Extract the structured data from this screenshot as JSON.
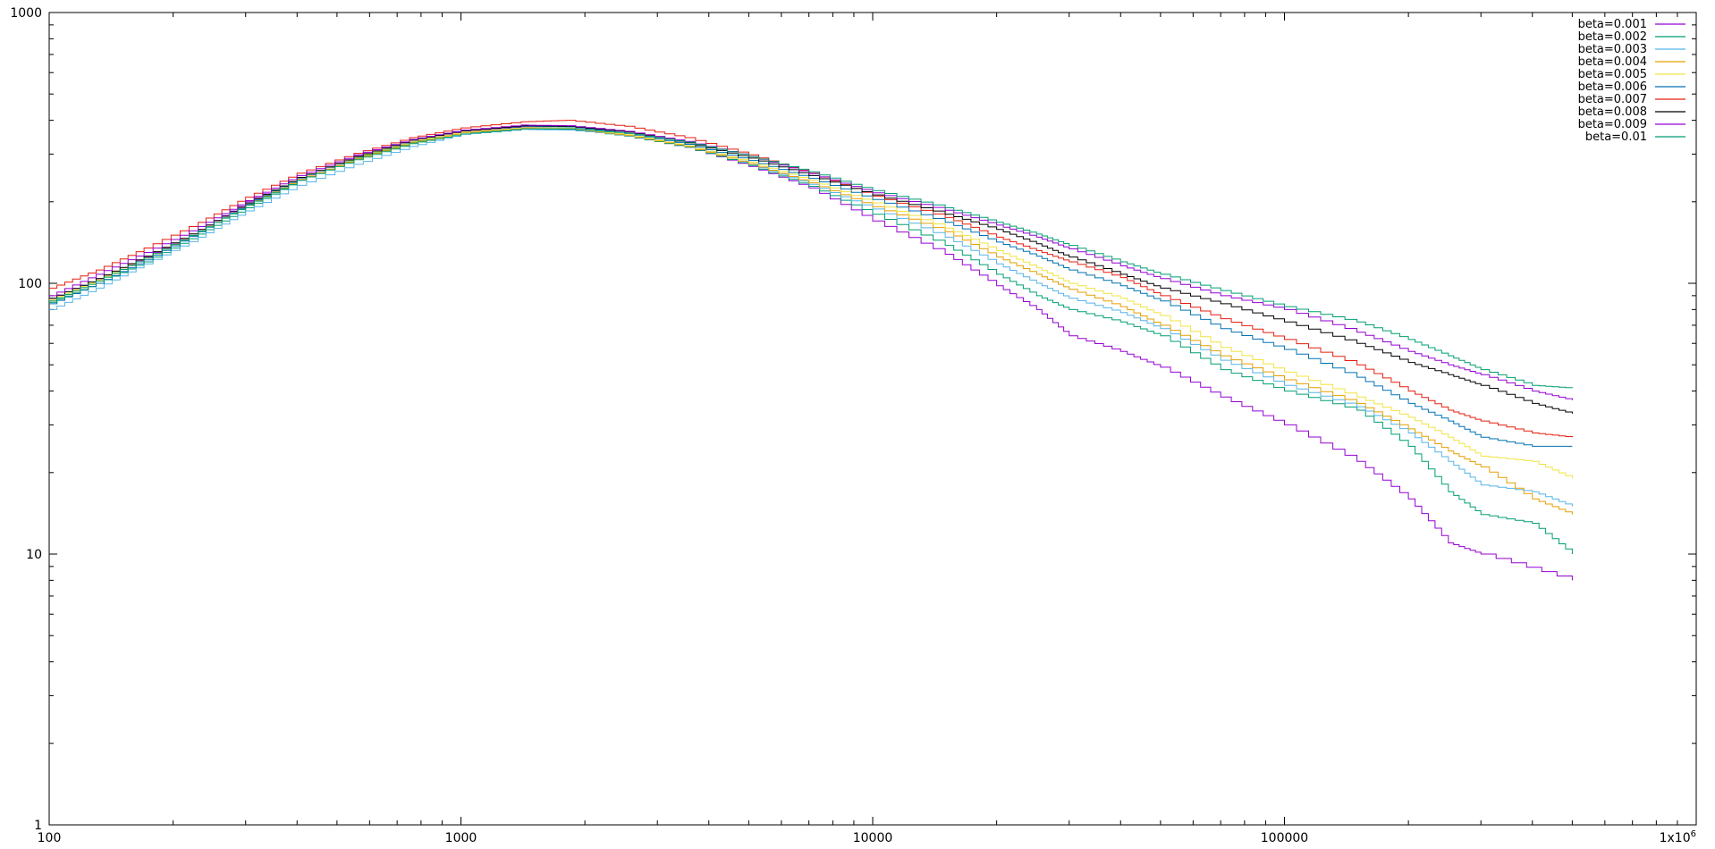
{
  "chart_data": {
    "type": "line",
    "title": "",
    "xlabel": "",
    "ylabel": "",
    "x_scale": "log",
    "y_scale": "log",
    "xlim": [
      100,
      1000000
    ],
    "ylim": [
      1,
      1000
    ],
    "grid": false,
    "legend_position": "top-right",
    "x_ticks": [
      {
        "value": 100,
        "label": "100"
      },
      {
        "value": 1000,
        "label": "1000"
      },
      {
        "value": 10000,
        "label": "10000"
      },
      {
        "value": 100000,
        "label": "100000"
      },
      {
        "value": 1000000,
        "label": "1x10",
        "sup": "6"
      }
    ],
    "y_ticks": [
      {
        "value": 1,
        "label": "1"
      },
      {
        "value": 10,
        "label": "10"
      },
      {
        "value": 100,
        "label": "100"
      },
      {
        "value": 1000,
        "label": "1000"
      }
    ],
    "series": [
      {
        "name": "beta=0.001",
        "color": "#9400d3",
        "points": [
          [
            100,
            88
          ],
          [
            130,
            104
          ],
          [
            170,
            125
          ],
          [
            230,
            158
          ],
          [
            300,
            200
          ],
          [
            400,
            245
          ],
          [
            550,
            295
          ],
          [
            750,
            338
          ],
          [
            1000,
            365
          ],
          [
            1400,
            378
          ],
          [
            1800,
            372
          ],
          [
            2500,
            350
          ],
          [
            3500,
            318
          ],
          [
            5000,
            270
          ],
          [
            7000,
            225
          ],
          [
            10000,
            170
          ],
          [
            15000,
            128
          ],
          [
            20000,
            98
          ],
          [
            25000,
            80
          ],
          [
            30000,
            64
          ],
          [
            40000,
            56
          ],
          [
            50000,
            49
          ],
          [
            70000,
            38
          ],
          [
            100000,
            30
          ],
          [
            150000,
            22
          ],
          [
            200000,
            16
          ],
          [
            250000,
            11
          ],
          [
            300000,
            10
          ],
          [
            500000,
            8
          ]
        ]
      },
      {
        "name": "beta=0.002",
        "color": "#009e73",
        "points": [
          [
            100,
            85
          ],
          [
            130,
            100
          ],
          [
            170,
            120
          ],
          [
            230,
            152
          ],
          [
            300,
            190
          ],
          [
            400,
            240
          ],
          [
            550,
            290
          ],
          [
            750,
            332
          ],
          [
            1000,
            360
          ],
          [
            1400,
            372
          ],
          [
            1800,
            370
          ],
          [
            2500,
            350
          ],
          [
            3500,
            318
          ],
          [
            5000,
            272
          ],
          [
            7000,
            228
          ],
          [
            10000,
            180
          ],
          [
            15000,
            138
          ],
          [
            20000,
            108
          ],
          [
            25000,
            90
          ],
          [
            30000,
            80
          ],
          [
            40000,
            72
          ],
          [
            50000,
            64
          ],
          [
            70000,
            48
          ],
          [
            100000,
            40
          ],
          [
            150000,
            34
          ],
          [
            200000,
            25
          ],
          [
            250000,
            17
          ],
          [
            300000,
            14
          ],
          [
            400000,
            13
          ],
          [
            500000,
            10
          ]
        ]
      },
      {
        "name": "beta=0.003",
        "color": "#56b4e9",
        "points": [
          [
            100,
            80
          ],
          [
            130,
            96
          ],
          [
            170,
            118
          ],
          [
            230,
            148
          ],
          [
            300,
            185
          ],
          [
            400,
            230
          ],
          [
            550,
            275
          ],
          [
            750,
            320
          ],
          [
            1000,
            355
          ],
          [
            1400,
            370
          ],
          [
            1800,
            368
          ],
          [
            2500,
            352
          ],
          [
            3500,
            322
          ],
          [
            5000,
            275
          ],
          [
            7000,
            232
          ],
          [
            10000,
            188
          ],
          [
            15000,
            148
          ],
          [
            20000,
            118
          ],
          [
            25000,
            100
          ],
          [
            30000,
            88
          ],
          [
            40000,
            78
          ],
          [
            50000,
            68
          ],
          [
            70000,
            52
          ],
          [
            100000,
            42
          ],
          [
            150000,
            35
          ],
          [
            200000,
            28
          ],
          [
            250000,
            22
          ],
          [
            300000,
            18
          ],
          [
            400000,
            17
          ],
          [
            500000,
            15
          ]
        ]
      },
      {
        "name": "beta=0.004",
        "color": "#e69f00",
        "points": [
          [
            100,
            86
          ],
          [
            130,
            102
          ],
          [
            170,
            124
          ],
          [
            230,
            156
          ],
          [
            300,
            195
          ],
          [
            400,
            242
          ],
          [
            550,
            288
          ],
          [
            750,
            330
          ],
          [
            1000,
            360
          ],
          [
            1400,
            374
          ],
          [
            1800,
            372
          ],
          [
            2500,
            352
          ],
          [
            3500,
            320
          ],
          [
            5000,
            276
          ],
          [
            7000,
            235
          ],
          [
            10000,
            192
          ],
          [
            15000,
            155
          ],
          [
            20000,
            125
          ],
          [
            25000,
            108
          ],
          [
            30000,
            95
          ],
          [
            40000,
            82
          ],
          [
            50000,
            70
          ],
          [
            70000,
            54
          ],
          [
            100000,
            44
          ],
          [
            150000,
            36
          ],
          [
            200000,
            29
          ],
          [
            250000,
            24
          ],
          [
            300000,
            21
          ],
          [
            400000,
            16
          ],
          [
            500000,
            14
          ]
        ]
      },
      {
        "name": "beta=0.005",
        "color": "#f0e442",
        "points": [
          [
            100,
            87
          ],
          [
            130,
            103
          ],
          [
            170,
            126
          ],
          [
            230,
            158
          ],
          [
            300,
            198
          ],
          [
            400,
            246
          ],
          [
            550,
            292
          ],
          [
            750,
            334
          ],
          [
            1000,
            362
          ],
          [
            1400,
            376
          ],
          [
            1800,
            374
          ],
          [
            2500,
            354
          ],
          [
            3500,
            322
          ],
          [
            5000,
            280
          ],
          [
            7000,
            240
          ],
          [
            10000,
            198
          ],
          [
            15000,
            160
          ],
          [
            20000,
            132
          ],
          [
            25000,
            114
          ],
          [
            30000,
            100
          ],
          [
            40000,
            88
          ],
          [
            50000,
            76
          ],
          [
            70000,
            58
          ],
          [
            100000,
            47
          ],
          [
            150000,
            38
          ],
          [
            200000,
            32
          ],
          [
            250000,
            27
          ],
          [
            300000,
            23
          ],
          [
            400000,
            22
          ],
          [
            500000,
            19
          ]
        ]
      },
      {
        "name": "beta=0.006",
        "color": "#0072b2",
        "points": [
          [
            100,
            84
          ],
          [
            130,
            100
          ],
          [
            170,
            122
          ],
          [
            230,
            155
          ],
          [
            300,
            196
          ],
          [
            400,
            245
          ],
          [
            550,
            294
          ],
          [
            750,
            338
          ],
          [
            1000,
            366
          ],
          [
            1400,
            380
          ],
          [
            1800,
            378
          ],
          [
            2500,
            358
          ],
          [
            3500,
            326
          ],
          [
            5000,
            284
          ],
          [
            7000,
            244
          ],
          [
            10000,
            204
          ],
          [
            15000,
            168
          ],
          [
            20000,
            142
          ],
          [
            25000,
            126
          ],
          [
            30000,
            112
          ],
          [
            40000,
            98
          ],
          [
            50000,
            86
          ],
          [
            70000,
            68
          ],
          [
            100000,
            57
          ],
          [
            150000,
            45
          ],
          [
            200000,
            36
          ],
          [
            250000,
            31
          ],
          [
            300000,
            27
          ],
          [
            400000,
            25
          ],
          [
            500000,
            25
          ]
        ]
      },
      {
        "name": "beta=0.007",
        "color": "#e51e10",
        "points": [
          [
            100,
            96
          ],
          [
            130,
            112
          ],
          [
            170,
            135
          ],
          [
            230,
            168
          ],
          [
            300,
            208
          ],
          [
            400,
            255
          ],
          [
            550,
            302
          ],
          [
            750,
            345
          ],
          [
            1000,
            375
          ],
          [
            1400,
            395
          ],
          [
            1800,
            400
          ],
          [
            2500,
            380
          ],
          [
            3500,
            345
          ],
          [
            5000,
            298
          ],
          [
            7000,
            255
          ],
          [
            10000,
            210
          ],
          [
            15000,
            175
          ],
          [
            20000,
            148
          ],
          [
            25000,
            132
          ],
          [
            30000,
            120
          ],
          [
            40000,
            105
          ],
          [
            50000,
            90
          ],
          [
            70000,
            74
          ],
          [
            100000,
            62
          ],
          [
            150000,
            50
          ],
          [
            200000,
            40
          ],
          [
            250000,
            34
          ],
          [
            300000,
            31
          ],
          [
            400000,
            28
          ],
          [
            500000,
            27
          ]
        ]
      },
      {
        "name": "beta=0.008",
        "color": "#000000",
        "points": [
          [
            100,
            88
          ],
          [
            130,
            104
          ],
          [
            170,
            126
          ],
          [
            230,
            158
          ],
          [
            300,
            198
          ],
          [
            400,
            246
          ],
          [
            550,
            294
          ],
          [
            750,
            338
          ],
          [
            1000,
            366
          ],
          [
            1400,
            382
          ],
          [
            1800,
            380
          ],
          [
            2500,
            362
          ],
          [
            3500,
            330
          ],
          [
            5000,
            290
          ],
          [
            7000,
            250
          ],
          [
            10000,
            212
          ],
          [
            15000,
            180
          ],
          [
            20000,
            158
          ],
          [
            25000,
            140
          ],
          [
            30000,
            125
          ],
          [
            40000,
            108
          ],
          [
            50000,
            96
          ],
          [
            70000,
            84
          ],
          [
            100000,
            72
          ],
          [
            150000,
            60
          ],
          [
            200000,
            51
          ],
          [
            250000,
            46
          ],
          [
            300000,
            42
          ],
          [
            400000,
            36
          ],
          [
            500000,
            33
          ]
        ]
      },
      {
        "name": "beta=0.009",
        "color": "#9400d3",
        "points": [
          [
            100,
            90
          ],
          [
            130,
            108
          ],
          [
            170,
            130
          ],
          [
            230,
            162
          ],
          [
            300,
            202
          ],
          [
            400,
            250
          ],
          [
            550,
            298
          ],
          [
            750,
            340
          ],
          [
            1000,
            368
          ],
          [
            1400,
            384
          ],
          [
            1800,
            382
          ],
          [
            2500,
            364
          ],
          [
            3500,
            334
          ],
          [
            5000,
            294
          ],
          [
            7000,
            254
          ],
          [
            10000,
            216
          ],
          [
            15000,
            186
          ],
          [
            20000,
            164
          ],
          [
            25000,
            148
          ],
          [
            30000,
            134
          ],
          [
            40000,
            116
          ],
          [
            50000,
            104
          ],
          [
            70000,
            90
          ],
          [
            100000,
            80
          ],
          [
            150000,
            66
          ],
          [
            200000,
            56
          ],
          [
            250000,
            50
          ],
          [
            300000,
            46
          ],
          [
            400000,
            40
          ],
          [
            500000,
            37
          ]
        ]
      },
      {
        "name": "beta=0.01",
        "color": "#009e73",
        "points": [
          [
            100,
            86
          ],
          [
            130,
            102
          ],
          [
            170,
            124
          ],
          [
            230,
            156
          ],
          [
            300,
            194
          ],
          [
            400,
            240
          ],
          [
            550,
            286
          ],
          [
            750,
            328
          ],
          [
            1000,
            356
          ],
          [
            1400,
            372
          ],
          [
            1800,
            372
          ],
          [
            2500,
            358
          ],
          [
            3500,
            332
          ],
          [
            5000,
            294
          ],
          [
            7000,
            258
          ],
          [
            10000,
            220
          ],
          [
            15000,
            190
          ],
          [
            20000,
            168
          ],
          [
            25000,
            152
          ],
          [
            30000,
            138
          ],
          [
            40000,
            120
          ],
          [
            50000,
            108
          ],
          [
            70000,
            94
          ],
          [
            100000,
            82
          ],
          [
            150000,
            72
          ],
          [
            200000,
            62
          ],
          [
            250000,
            54
          ],
          [
            300000,
            48
          ],
          [
            400000,
            42
          ],
          [
            500000,
            41
          ]
        ]
      }
    ]
  }
}
